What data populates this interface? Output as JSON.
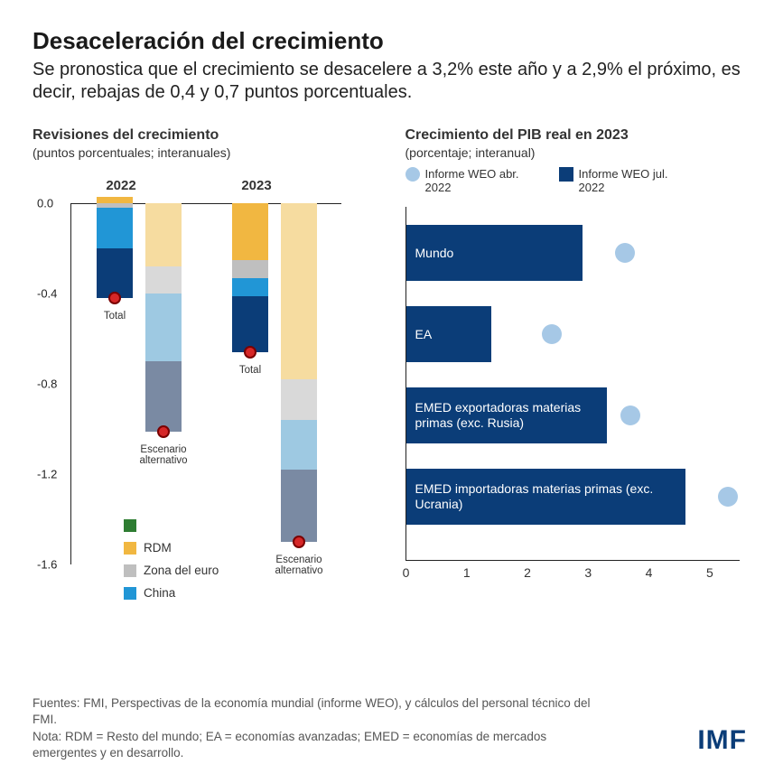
{
  "header": {
    "title": "Desaceleración del crecimiento",
    "subtitle": "Se pronostica que el crecimiento se desacelere a 3,2% este año y a 2,9% el próximo, es decir, rebajas de 0,4 y 0,7 puntos porcentuales."
  },
  "left": {
    "title": "Revisiones del crecimiento",
    "subtitle": "(puntos porcentuales; interanuales)",
    "ylim": [
      -1.6,
      0.0
    ],
    "ytick_step": 0.4,
    "yticks": [
      "0.0",
      "-0.4",
      "-0.8",
      "-1.2",
      "-1.6"
    ],
    "years": [
      "2022",
      "2023"
    ],
    "colors": {
      "EEUU_pos": "#2e7d32",
      "RDM": "#f1b741",
      "Zona_euro": "#bfbfbf",
      "China": "#2196d6",
      "EEUU_neg": "#0b3d78",
      "Alt_RDM": "#f6dca0",
      "Alt_Zona": "#d9d9d9",
      "Alt_China": "#9ec9e2",
      "Alt_EEUU": "#7a8aa3",
      "Total_dot": "#d62728"
    },
    "bars": [
      {
        "year": "2022",
        "kind": "base",
        "x": 28,
        "pos_segments": [
          {
            "h": 0.03,
            "color": "#f1b741"
          }
        ],
        "neg_segments": [
          {
            "h": 0.02,
            "color": "#bfbfbf"
          },
          {
            "h": 0.18,
            "color": "#2196d6"
          },
          {
            "h": 0.22,
            "color": "#0b3d78"
          }
        ],
        "total": -0.42,
        "caption": "Total"
      },
      {
        "year": "2022",
        "kind": "alt",
        "x": 82,
        "pos_segments": [],
        "neg_segments": [
          {
            "h": 0.28,
            "color": "#f6dca0"
          },
          {
            "h": 0.12,
            "color": "#d9d9d9"
          },
          {
            "h": 0.3,
            "color": "#9ec9e2"
          },
          {
            "h": 0.31,
            "color": "#7a8aa3"
          }
        ],
        "total": -1.01,
        "caption": "Escenario alternativo"
      },
      {
        "year": "2023",
        "kind": "base",
        "x": 178,
        "pos_segments": [],
        "neg_segments": [
          {
            "h": 0.25,
            "color": "#f1b741"
          },
          {
            "h": 0.08,
            "color": "#bfbfbf"
          },
          {
            "h": 0.08,
            "color": "#2196d6"
          },
          {
            "h": 0.25,
            "color": "#0b3d78"
          }
        ],
        "total": -0.66,
        "caption": "Total"
      },
      {
        "year": "2023",
        "kind": "alt",
        "x": 232,
        "pos_segments": [],
        "neg_segments": [
          {
            "h": 0.78,
            "color": "#f6dca0"
          },
          {
            "h": 0.18,
            "color": "#d9d9d9"
          },
          {
            "h": 0.22,
            "color": "#9ec9e2"
          },
          {
            "h": 0.32,
            "color": "#7a8aa3"
          }
        ],
        "total": -1.5,
        "caption": "Escenario alternativo"
      }
    ],
    "legend": [
      {
        "color": "#2e7d32",
        "label": ""
      },
      {
        "color": "#f1b741",
        "label": "RDM"
      },
      {
        "color": "#bfbfbf",
        "label": "Zona del euro"
      },
      {
        "color": "#2196d6",
        "label": "China"
      }
    ]
  },
  "right": {
    "title": "Crecimiento del PIB real en 2023",
    "subtitle": "(porcentaje; interanual)",
    "legend": {
      "prev": "Informe WEO abr. 2022",
      "curr": "Informe WEO jul. 2022"
    },
    "xlim": [
      0,
      5.5
    ],
    "xticks": [
      "0",
      "1",
      "2",
      "3",
      "4",
      "5"
    ],
    "bar_color": "#0b3d78",
    "dot_color": "#a6c8e6",
    "rows": [
      {
        "label": "Mundo",
        "current": 2.9,
        "previous": 3.6
      },
      {
        "label": "EA",
        "current": 1.4,
        "previous": 2.4
      },
      {
        "label": "EMED exportadoras materias primas (exc. Rusia)",
        "current": 3.3,
        "previous": 3.7
      },
      {
        "label": "EMED importadoras materias primas (exc. Ucrania)",
        "current": 4.6,
        "previous": 5.3
      }
    ]
  },
  "footer": {
    "sources": "Fuentes: FMI, Perspectivas de la economía mundial (informe WEO), y cálculos del personal técnico del FMI.",
    "note": "Nota: RDM = Resto del mundo; EA = economías avanzadas; EMED = economías de mercados emergentes y en desarrollo."
  },
  "logo": "IMF"
}
